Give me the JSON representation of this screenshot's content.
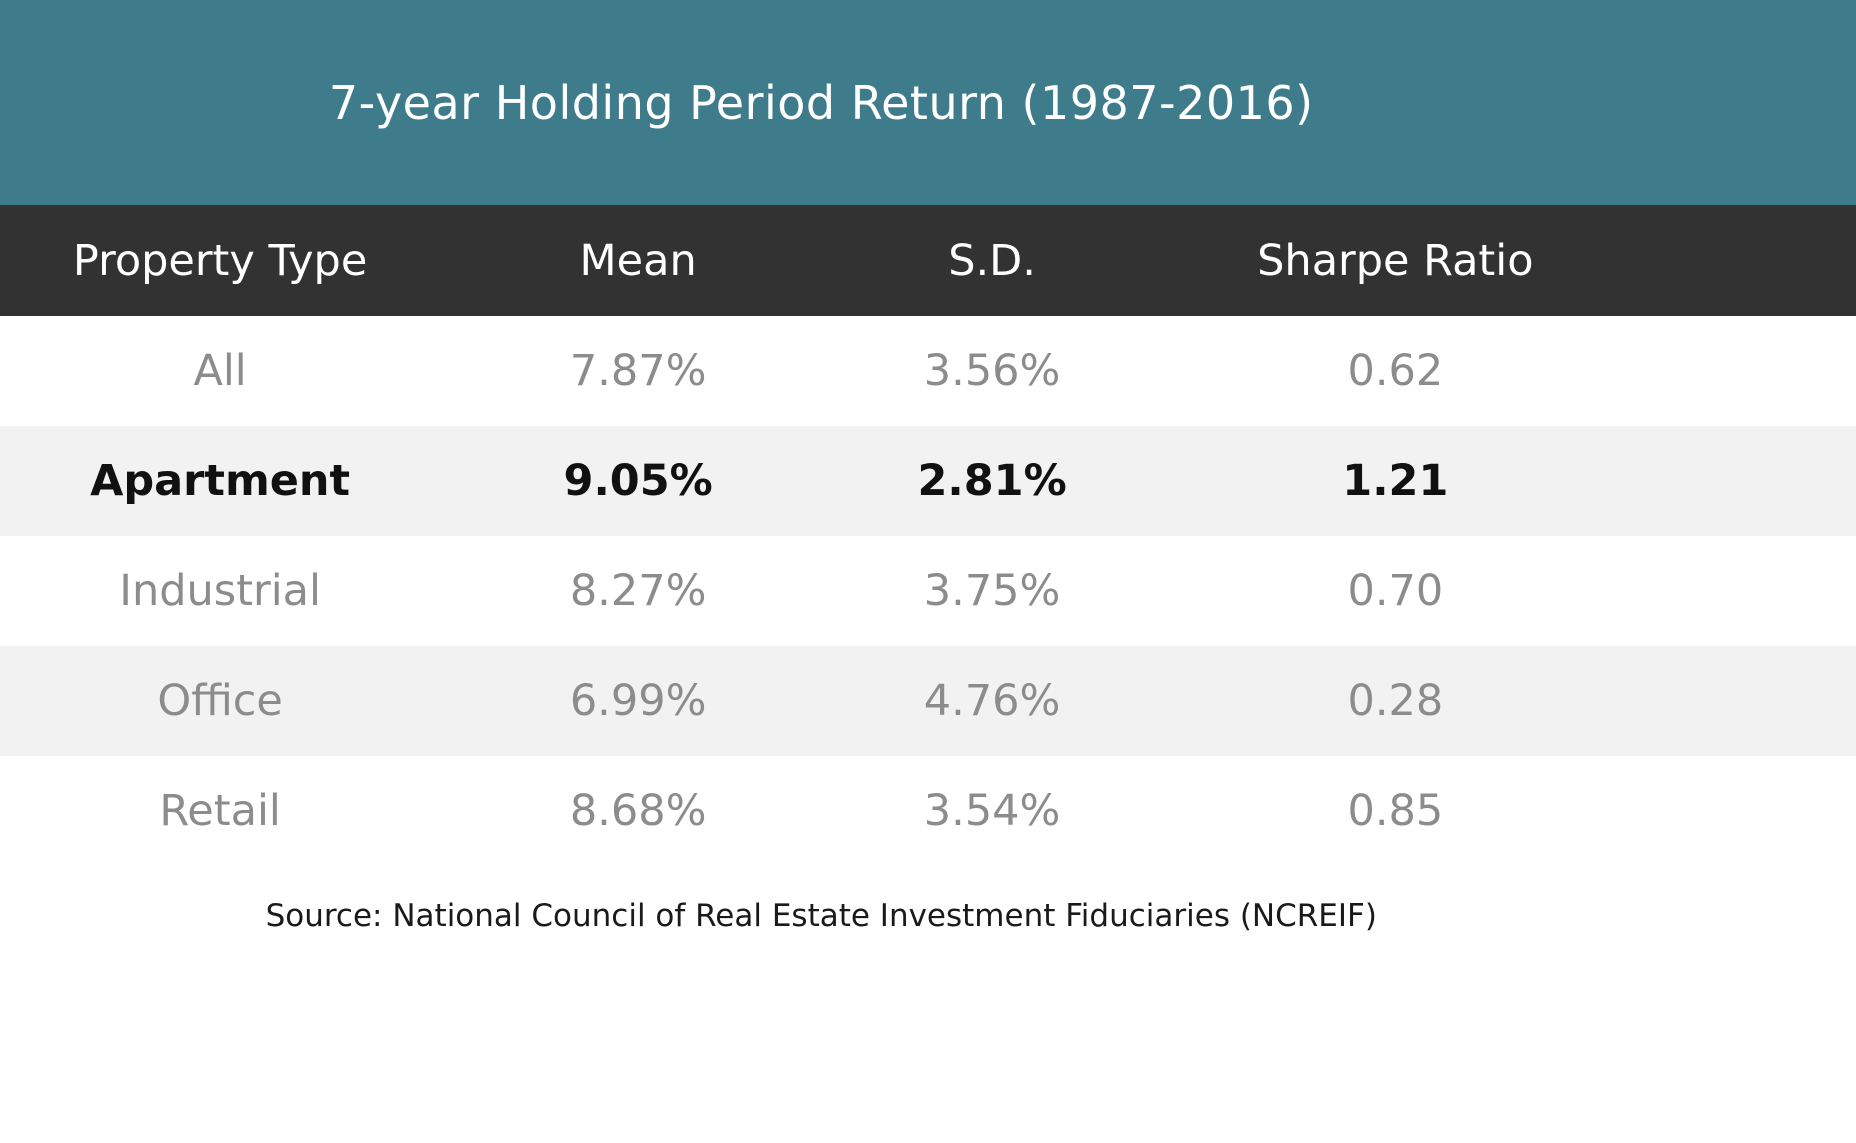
{
  "chart_data": {
    "type": "table",
    "title": "7-year Holding Period Return (1987-2016)",
    "columns": [
      "Property Type",
      "Mean",
      "S.D.",
      "Sharpe Ratio"
    ],
    "rows": [
      [
        "All",
        "7.87%",
        "3.56%",
        "0.62"
      ],
      [
        "Apartment",
        "9.05%",
        "2.81%",
        "1.21"
      ],
      [
        "Industrial",
        "8.27%",
        "3.75%",
        "0.70"
      ],
      [
        "Office",
        "6.99%",
        "4.76%",
        "0.28"
      ],
      [
        "Retail",
        "8.68%",
        "3.54%",
        "0.85"
      ]
    ],
    "emphasized_row": "Apartment",
    "source": "Source: National Council of Real Estate Investment Fiduciaries (NCREIF)"
  },
  "colors": {
    "title_band": "#3e7c8c",
    "header_row_bg": "#323232",
    "alt_row_bg": "#f2f2f2",
    "muted_text": "#8c8c8c",
    "emphasis_text": "#111111"
  }
}
